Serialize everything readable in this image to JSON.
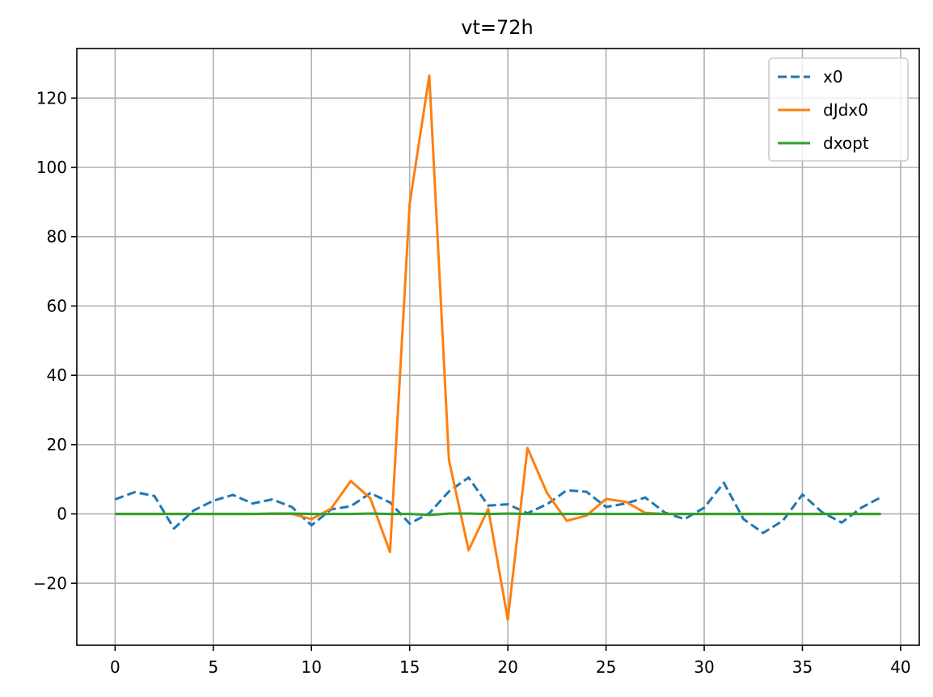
{
  "chart_data": {
    "type": "line",
    "title": "vt=72h",
    "xlabel": "",
    "ylabel": "",
    "xlim": [
      -1.95,
      40.95
    ],
    "ylim": [
      -37.9,
      134.3
    ],
    "xticks": [
      0,
      5,
      10,
      15,
      20,
      25,
      30,
      35,
      40
    ],
    "xtick_labels": [
      "0",
      "5",
      "10",
      "15",
      "20",
      "25",
      "30",
      "35",
      "40"
    ],
    "yticks": [
      -20,
      0,
      20,
      40,
      60,
      80,
      100,
      120
    ],
    "ytick_labels": [
      "−20",
      "0",
      "20",
      "40",
      "60",
      "80",
      "100",
      "120"
    ],
    "grid": true,
    "legend_position": "upper-right",
    "x": [
      0,
      1,
      2,
      3,
      4,
      5,
      6,
      7,
      8,
      9,
      10,
      11,
      12,
      13,
      14,
      15,
      16,
      17,
      18,
      19,
      20,
      21,
      22,
      23,
      24,
      25,
      26,
      27,
      28,
      29,
      30,
      31,
      32,
      33,
      34,
      35,
      36,
      37,
      38,
      39
    ],
    "series": [
      {
        "name": "x0",
        "color": "#1f77b4",
        "style": "dashed",
        "values": [
          4.2,
          6.3,
          5.2,
          -4.2,
          1.0,
          3.8,
          5.5,
          3.0,
          4.2,
          2.0,
          -3.3,
          1.3,
          2.2,
          6.0,
          3.3,
          -2.8,
          0.2,
          6.5,
          10.5,
          2.4,
          2.8,
          0.2,
          2.8,
          6.8,
          6.4,
          2.0,
          3.0,
          4.7,
          0.4,
          -1.5,
          1.8,
          9.0,
          -1.5,
          -5.5,
          -2.0,
          5.6,
          0.5,
          -2.5,
          1.8,
          4.8
        ]
      },
      {
        "name": "dJdx0",
        "color": "#ff7f0e",
        "style": "solid",
        "values": [
          0,
          0,
          0,
          0,
          0,
          0,
          0,
          0,
          0,
          0,
          -1.5,
          1.5,
          9.5,
          4.5,
          -11.0,
          89.5,
          126.5,
          15.5,
          -10.5,
          1.5,
          -30.5,
          19.0,
          6.0,
          -2.0,
          -0.5,
          4.3,
          3.5,
          0.3,
          0,
          0,
          0,
          0,
          0,
          0,
          0,
          0,
          0,
          0,
          0,
          0
        ]
      },
      {
        "name": "dxopt",
        "color": "#2ca02c",
        "style": "solid",
        "values": [
          0,
          0,
          0,
          0,
          0,
          0,
          0,
          0,
          0.1,
          0.1,
          0,
          0,
          0,
          0.1,
          0,
          0,
          -0.3,
          0.1,
          0.1,
          0,
          0.1,
          0,
          0,
          0,
          0,
          0,
          0,
          0,
          0,
          0,
          0,
          0,
          0,
          0,
          0,
          0,
          0,
          0,
          0,
          0
        ]
      }
    ]
  }
}
